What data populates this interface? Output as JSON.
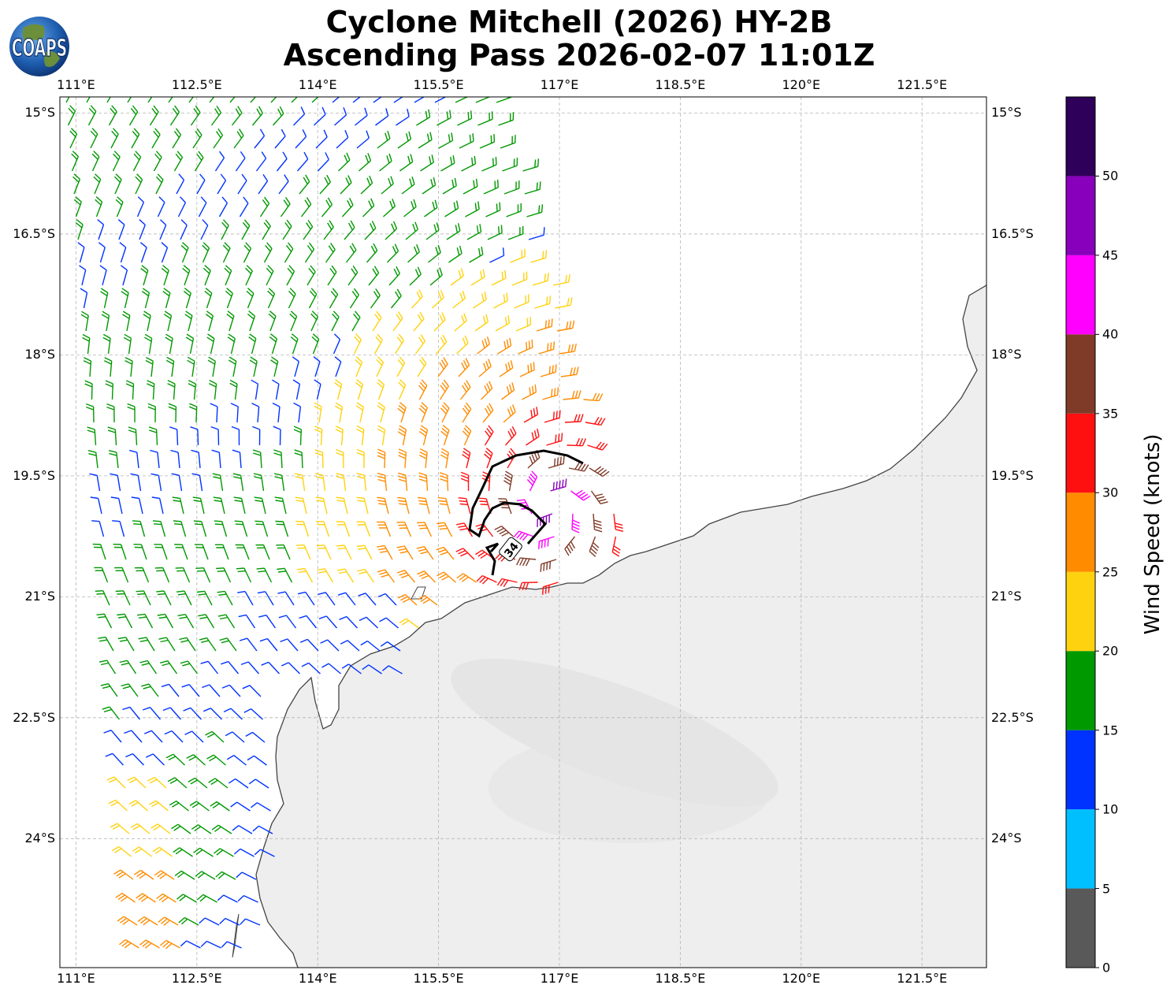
{
  "title": {
    "line1": "Cyclone Mitchell (2026) HY-2B",
    "line2": "Ascending Pass 2026-02-07 11:01Z"
  },
  "logo": {
    "text": "COAPS"
  },
  "map": {
    "lon_range": [
      110.8,
      122.3
    ],
    "lat_range": [
      -25.6,
      -14.8
    ],
    "lon_ticks": [
      "111°E",
      "112.5°E",
      "114°E",
      "115.5°E",
      "117°E",
      "118.5°E",
      "120°E",
      "121.5°E"
    ],
    "lat_ticks": [
      "15°S",
      "16.5°S",
      "18°S",
      "19.5°S",
      "21°S",
      "22.5°S",
      "24°S"
    ],
    "gridlines": true,
    "land_fill": "#eeeeee",
    "ocean_fill": "#ffffff",
    "coast_color": "#444444",
    "contour_label": "34",
    "contour_knots": 34
  },
  "colorbar": {
    "label": "Wind Speed (knots)",
    "ticks": [
      "0",
      "5",
      "10",
      "15",
      "20",
      "25",
      "30",
      "35",
      "40",
      "45",
      "50"
    ],
    "colors": [
      "#595959",
      "#00bfff",
      "#0033ff",
      "#009900",
      "#ffd20f",
      "#ff8c00",
      "#ff1010",
      "#803b28",
      "#ff00ff",
      "#8800bb",
      "#2e0059"
    ],
    "range": [
      0,
      55
    ]
  }
}
